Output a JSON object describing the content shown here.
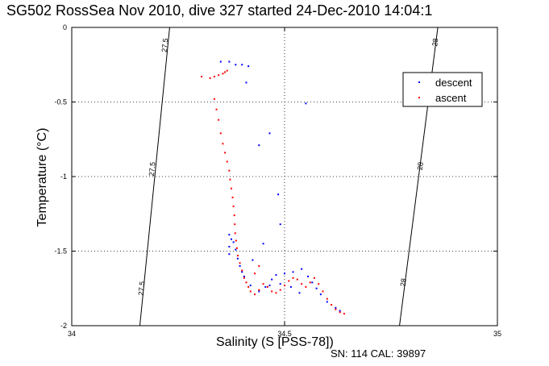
{
  "title": "SG502 RossSea Nov 2010, dive 327 started 24-Dec-2010 14:04:1",
  "footer": "SN: 114  CAL: 39897",
  "chart_data": {
    "type": "scatter",
    "xlabel": "Salinity (S [PSS-78])",
    "ylabel": "Temperature (°C)",
    "xlim": [
      34,
      35
    ],
    "ylim": [
      -2,
      0
    ],
    "x_ticks": [
      34,
      34.5,
      35
    ],
    "x_tick_labels": [
      "34",
      "34.5",
      "35"
    ],
    "y_ticks": [
      0,
      -0.5,
      -1,
      -1.5,
      -2
    ],
    "y_tick_labels": [
      "0",
      "-0.5",
      "-1",
      "-1.5",
      "-2"
    ],
    "grid": true,
    "legend_position": "top-right",
    "series": [
      {
        "name": "descent",
        "color": "#0000ff",
        "points": [
          [
            34.35,
            -0.23
          ],
          [
            34.37,
            -0.23
          ],
          [
            34.385,
            -0.25
          ],
          [
            34.4,
            -0.25
          ],
          [
            34.415,
            -0.26
          ],
          [
            34.41,
            -0.37
          ],
          [
            34.55,
            -0.51
          ],
          [
            34.465,
            -0.71
          ],
          [
            34.44,
            -0.79
          ],
          [
            34.485,
            -1.12
          ],
          [
            34.49,
            -1.32
          ],
          [
            34.37,
            -1.39
          ],
          [
            34.375,
            -1.42
          ],
          [
            34.38,
            -1.44
          ],
          [
            34.37,
            -1.47
          ],
          [
            34.385,
            -1.49
          ],
          [
            34.37,
            -1.52
          ],
          [
            34.39,
            -1.55
          ],
          [
            34.45,
            -1.45
          ],
          [
            34.425,
            -1.56
          ],
          [
            34.395,
            -1.6
          ],
          [
            34.4,
            -1.64
          ],
          [
            34.405,
            -1.67
          ],
          [
            34.42,
            -1.73
          ],
          [
            34.44,
            -1.77
          ],
          [
            34.455,
            -1.74
          ],
          [
            34.47,
            -1.69
          ],
          [
            34.48,
            -1.66
          ],
          [
            34.5,
            -1.65
          ],
          [
            34.52,
            -1.64
          ],
          [
            34.54,
            -1.62
          ],
          [
            34.555,
            -1.67
          ],
          [
            34.565,
            -1.71
          ],
          [
            34.575,
            -1.75
          ],
          [
            34.585,
            -1.79
          ],
          [
            34.6,
            -1.84
          ],
          [
            34.62,
            -1.88
          ],
          [
            34.63,
            -1.9
          ],
          [
            34.535,
            -1.78
          ],
          [
            34.515,
            -1.74
          ],
          [
            34.49,
            -1.72
          ],
          [
            34.465,
            -1.73
          ]
        ]
      },
      {
        "name": "ascent",
        "color": "#ff0000",
        "points": [
          [
            34.305,
            -0.33
          ],
          [
            34.325,
            -0.34
          ],
          [
            34.335,
            -0.33
          ],
          [
            34.345,
            -0.32
          ],
          [
            34.355,
            -0.31
          ],
          [
            34.36,
            -0.3
          ],
          [
            34.365,
            -0.29
          ],
          [
            34.335,
            -0.48
          ],
          [
            34.34,
            -0.55
          ],
          [
            34.345,
            -0.62
          ],
          [
            34.35,
            -0.71
          ],
          [
            34.355,
            -0.78
          ],
          [
            34.36,
            -0.84
          ],
          [
            34.365,
            -0.9
          ],
          [
            34.37,
            -0.96
          ],
          [
            34.372,
            -1.02
          ],
          [
            34.375,
            -1.08
          ],
          [
            34.378,
            -1.14
          ],
          [
            34.38,
            -1.2
          ],
          [
            34.382,
            -1.26
          ],
          [
            34.383,
            -1.32
          ],
          [
            34.384,
            -1.38
          ],
          [
            34.386,
            -1.43
          ],
          [
            34.388,
            -1.48
          ],
          [
            34.39,
            -1.53
          ],
          [
            34.395,
            -1.58
          ],
          [
            34.4,
            -1.63
          ],
          [
            34.405,
            -1.68
          ],
          [
            34.41,
            -1.71
          ],
          [
            34.415,
            -1.74
          ],
          [
            34.42,
            -1.77
          ],
          [
            34.43,
            -1.79
          ],
          [
            34.44,
            -1.76
          ],
          [
            34.45,
            -1.72
          ],
          [
            34.46,
            -1.74
          ],
          [
            34.47,
            -1.77
          ],
          [
            34.48,
            -1.78
          ],
          [
            34.49,
            -1.76
          ],
          [
            34.5,
            -1.73
          ],
          [
            34.51,
            -1.7
          ],
          [
            34.52,
            -1.68
          ],
          [
            34.53,
            -1.69
          ],
          [
            34.54,
            -1.72
          ],
          [
            34.55,
            -1.74
          ],
          [
            34.56,
            -1.71
          ],
          [
            34.57,
            -1.68
          ],
          [
            34.58,
            -1.72
          ],
          [
            34.59,
            -1.77
          ],
          [
            34.6,
            -1.82
          ],
          [
            34.61,
            -1.86
          ],
          [
            34.62,
            -1.89
          ],
          [
            34.63,
            -1.91
          ],
          [
            34.64,
            -1.92
          ],
          [
            34.43,
            -1.65
          ],
          [
            34.44,
            -1.6
          ]
        ]
      }
    ],
    "isopycnals": [
      {
        "label": "27.5",
        "line": [
          [
            34.16,
            -2
          ],
          [
            34.23,
            0
          ]
        ],
        "label_positions": [
          [
            34.22,
            -0.12
          ],
          [
            34.19,
            -0.95
          ],
          [
            34.165,
            -1.75
          ]
        ]
      },
      {
        "label": "28",
        "line": [
          [
            34.77,
            -2
          ],
          [
            34.86,
            0
          ]
        ],
        "label_positions": [
          [
            34.855,
            -0.1
          ],
          [
            34.82,
            -0.93
          ],
          [
            34.78,
            -1.71
          ]
        ]
      }
    ]
  }
}
